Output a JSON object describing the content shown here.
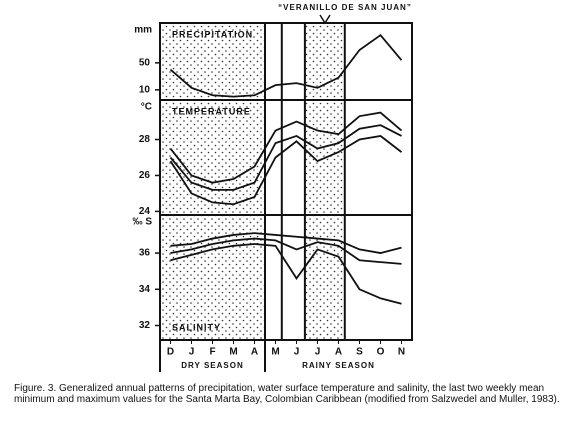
{
  "chart_data": {
    "type": "line",
    "annotation": "“VERANILLO DE SAN JUAN”",
    "categories": [
      "D",
      "J",
      "F",
      "M",
      "A",
      "M",
      "J",
      "J",
      "A",
      "S",
      "O",
      "N"
    ],
    "seasons": [
      "DRY SEASON",
      "RAINY SEASON"
    ],
    "panels": [
      {
        "title": "PRECIPITATION",
        "y_label": "mm",
        "ylim": [
          -5,
          109
        ],
        "yticks": [
          50,
          10
        ],
        "series": [
          {
            "color": "#111",
            "values": [
              40,
              13,
              2,
              0,
              2,
              17,
              20,
              13,
              28,
              69,
              91,
              54
            ]
          }
        ]
      },
      {
        "title": "TEMPERATURE",
        "y_label": "°C",
        "ylim": [
          23.8,
          30.2
        ],
        "yticks": [
          28,
          26,
          24
        ],
        "series": [
          {
            "color": "#111",
            "values": [
              27.5,
              26.0,
              25.6,
              25.8,
              26.5,
              28.5,
              29.0,
              28.5,
              28.3,
              29.3,
              29.5,
              28.5
            ]
          },
          {
            "color": "#111",
            "values": [
              27.0,
              25.6,
              25.2,
              25.2,
              25.6,
              27.8,
              28.2,
              27.5,
              27.8,
              28.6,
              28.8,
              28.2
            ]
          },
          {
            "color": "#111",
            "values": [
              26.8,
              25.0,
              24.5,
              24.4,
              24.8,
              27.0,
              27.9,
              26.8,
              27.3,
              28.0,
              28.2,
              27.3
            ]
          }
        ]
      },
      {
        "title": "SALINITY",
        "y_label": "‰ S",
        "ylim": [
          31.2,
          38.1
        ],
        "yticks": [
          36,
          34,
          32
        ],
        "series": [
          {
            "color": "#111",
            "values": [
              36.4,
              36.5,
              36.8,
              37.0,
              37.1,
              37.0,
              36.9,
              36.8,
              36.7,
              36.2,
              36.0,
              36.3
            ]
          },
          {
            "color": "#111",
            "values": [
              36.0,
              36.2,
              36.5,
              36.7,
              36.8,
              36.7,
              36.2,
              36.6,
              36.4,
              35.6,
              35.5,
              35.4
            ]
          },
          {
            "color": "#111",
            "values": [
              35.6,
              35.9,
              36.2,
              36.4,
              36.5,
              36.4,
              34.6,
              36.2,
              35.8,
              34.0,
              33.5,
              33.2
            ]
          }
        ]
      }
    ]
  },
  "caption": "Figure. 3. Generalized annual patterns of precipitation, water surface temperature and salinity, the last two weekly mean minimum and maximum values for the Santa Marta Bay, Colombian Caribbean (modified from Salzwedel and Muller, 1983)."
}
